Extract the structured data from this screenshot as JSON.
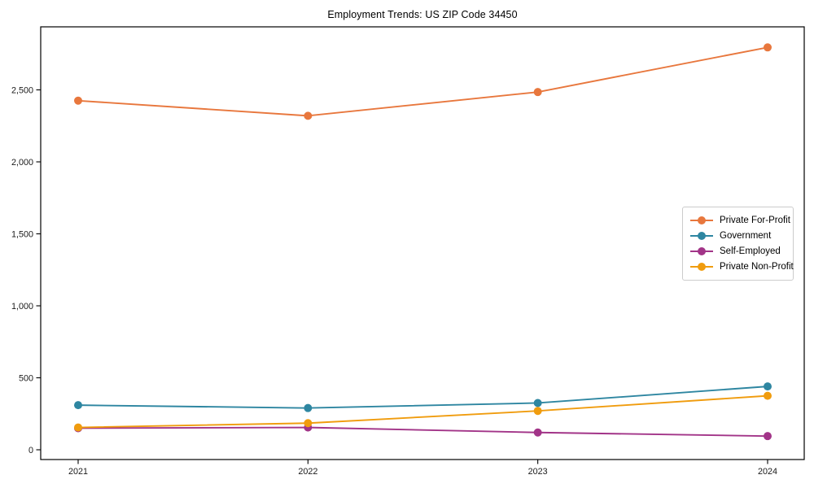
{
  "title": "Employment Trends: US ZIP Code 34450",
  "chart_data": {
    "type": "line",
    "title": "Employment Trends: US ZIP Code 34450",
    "xlabel": "",
    "ylabel": "",
    "x": [
      2021,
      2022,
      2023,
      2024
    ],
    "xtick_labels": [
      "2021",
      "2022",
      "2023",
      "2024"
    ],
    "yticks": [
      0,
      500,
      1000,
      1500,
      2000,
      2500
    ],
    "ytick_labels": [
      "0",
      "500",
      "1,000",
      "1,500",
      "2,000",
      "2,500"
    ],
    "ylim": [
      -70,
      2940
    ],
    "grid": false,
    "legend_position": "center-right",
    "series": [
      {
        "name": "Private For-Profit",
        "color": "#e8773d",
        "values": [
          2425,
          2320,
          2485,
          2795
        ]
      },
      {
        "name": "Government",
        "color": "#2e86a1",
        "values": [
          310,
          290,
          325,
          440
        ]
      },
      {
        "name": "Self-Employed",
        "color": "#a23488",
        "values": [
          150,
          155,
          120,
          95
        ]
      },
      {
        "name": "Private Non-Profit",
        "color": "#f09c0e",
        "values": [
          155,
          185,
          270,
          375
        ]
      }
    ],
    "axis_color": "#000000",
    "tick_label_color": "#1a1a1a"
  }
}
